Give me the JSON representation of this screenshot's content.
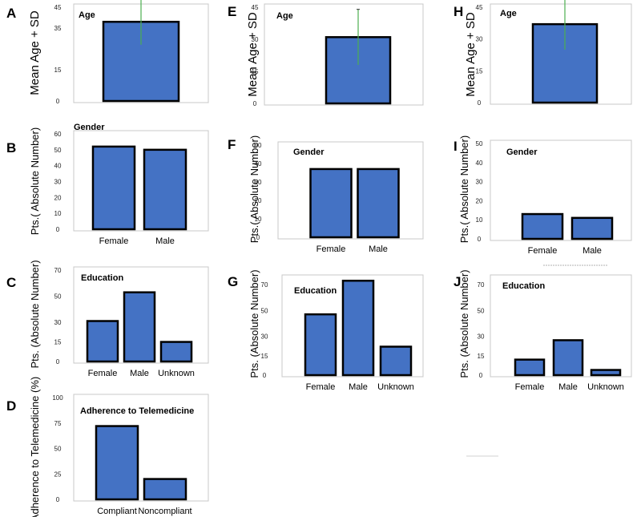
{
  "chart_data": [
    {
      "panel": "A",
      "type": "bar",
      "title": "Age",
      "ylabel": "Mean Age + SD",
      "ylim": [
        0,
        45
      ],
      "yticks": [
        "45",
        "35",
        "15",
        "0"
      ],
      "ytick_values": [
        45,
        35,
        15,
        0
      ],
      "categories": [
        ""
      ],
      "values": [
        38
      ],
      "error": [
        11
      ]
    },
    {
      "panel": "B",
      "type": "bar",
      "title": "Gender",
      "ylabel": "Pts.( Absolute Number)",
      "ylim": [
        0,
        60
      ],
      "yticks": [
        "60",
        "50",
        "40",
        "30",
        "20",
        "10",
        "0"
      ],
      "ytick_values": [
        60,
        50,
        40,
        30,
        20,
        10,
        0
      ],
      "categories": [
        "Female",
        "Male"
      ],
      "values": [
        52,
        50
      ]
    },
    {
      "panel": "C",
      "type": "bar",
      "title": "Education",
      "ylabel": "Pts. (Absolute Number)",
      "ylim": [
        0,
        70
      ],
      "yticks": [
        "70",
        "50",
        "30",
        "15",
        "0"
      ],
      "ytick_values": [
        70,
        50,
        30,
        15,
        0
      ],
      "categories": [
        "Female",
        "Male",
        "Unknown"
      ],
      "values": [
        31,
        53,
        15
      ]
    },
    {
      "panel": "D",
      "type": "bar",
      "title": "Adherence to Telemedicine",
      "ylabel": "Adherence to Telemedicine (%)",
      "ylim": [
        0,
        100
      ],
      "yticks": [
        "100",
        "75",
        "50",
        "25",
        "0"
      ],
      "ytick_values": [
        100,
        75,
        50,
        25,
        0
      ],
      "categories": [
        "Compliant",
        "Noncompliant"
      ],
      "values": [
        72,
        20
      ]
    },
    {
      "panel": "E",
      "type": "bar",
      "title": "Age",
      "ylabel": "Mean Age + SD",
      "ylim": [
        0,
        45
      ],
      "yticks": [
        "45",
        "30",
        "15",
        "0"
      ],
      "ytick_values": [
        45,
        30,
        15,
        0
      ],
      "categories": [
        ""
      ],
      "values": [
        31
      ],
      "error": [
        13
      ]
    },
    {
      "panel": "F",
      "type": "bar",
      "title": "Gender",
      "ylabel": "Pts.( Absolute Number)",
      "ylim": [
        0,
        50
      ],
      "yticks": [
        "50",
        "40",
        "30",
        "20",
        "10",
        "0"
      ],
      "ytick_values": [
        50,
        40,
        30,
        20,
        10,
        0
      ],
      "categories": [
        "Female",
        "Male"
      ],
      "values": [
        37,
        37
      ]
    },
    {
      "panel": "G",
      "type": "bar",
      "title": "Education",
      "ylabel": "Pts. (Absolute Number)",
      "ylim": [
        0,
        75
      ],
      "yticks": [
        "70",
        "50",
        "30",
        "15",
        "0"
      ],
      "ytick_values": [
        70,
        50,
        30,
        15,
        0
      ],
      "categories": [
        "Female",
        "Male",
        "Unknown"
      ],
      "values": [
        47,
        73,
        22
      ]
    },
    {
      "panel": "H",
      "type": "bar",
      "title": "Age",
      "ylabel": "Mean Age + SD",
      "ylim": [
        0,
        45
      ],
      "yticks": [
        "45",
        "30",
        "15",
        "0"
      ],
      "ytick_values": [
        45,
        30,
        15,
        0
      ],
      "categories": [
        ""
      ],
      "values": [
        37
      ],
      "error": [
        12
      ]
    },
    {
      "panel": "I",
      "type": "bar",
      "title": "Gender",
      "ylabel": "Pts.( Absolute Number)",
      "ylim": [
        0,
        50
      ],
      "yticks": [
        "50",
        "40",
        "30",
        "20",
        "10",
        "0"
      ],
      "ytick_values": [
        50,
        40,
        30,
        20,
        10,
        0
      ],
      "categories": [
        "Female",
        "Male"
      ],
      "values": [
        13,
        11
      ]
    },
    {
      "panel": "J",
      "type": "bar",
      "title": "Education",
      "ylabel": "Pts. (Absolute Number)",
      "ylim": [
        0,
        75
      ],
      "yticks": [
        "70",
        "50",
        "30",
        "15",
        "0"
      ],
      "ytick_values": [
        70,
        50,
        30,
        15,
        0
      ],
      "categories": [
        "Female",
        "Male",
        "Unknown"
      ],
      "values": [
        12,
        27,
        4
      ]
    }
  ]
}
